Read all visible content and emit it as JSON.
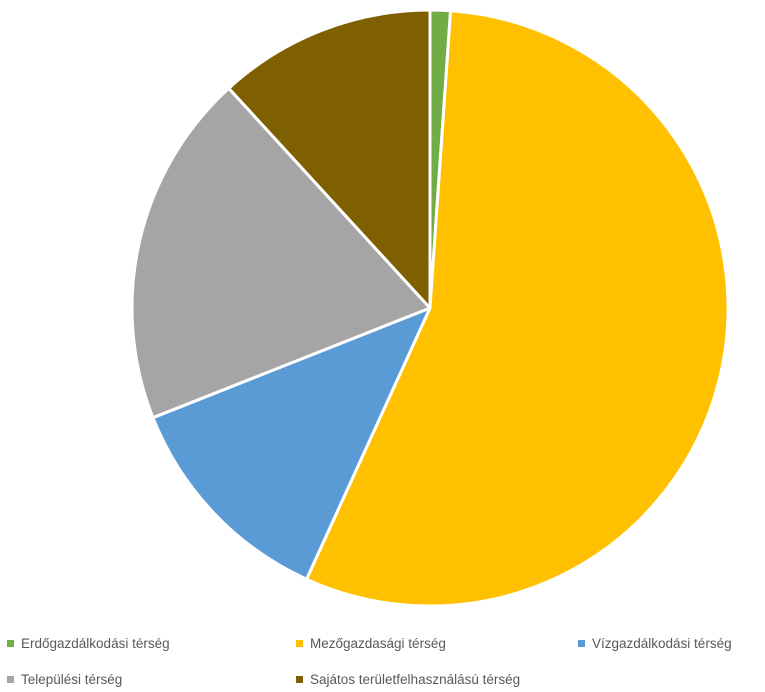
{
  "chart_data": {
    "type": "pie",
    "title": "",
    "categories": [
      "Erdőgazdálkodási térség",
      "Mezőgazdasági térség",
      "Vízgazdálkodási térség",
      "Települési térség",
      "Sajátos területfelhasználású térség"
    ],
    "values": [
      1.1,
      55.7,
      12.2,
      19.2,
      11.8
    ],
    "unit": "%",
    "colors": [
      "#70AD47",
      "#FFC000",
      "#5B9BD5",
      "#A5A5A5",
      "#7F6000"
    ],
    "legend_position": "bottom",
    "start_angle_deg": 0,
    "direction": "clockwise"
  }
}
